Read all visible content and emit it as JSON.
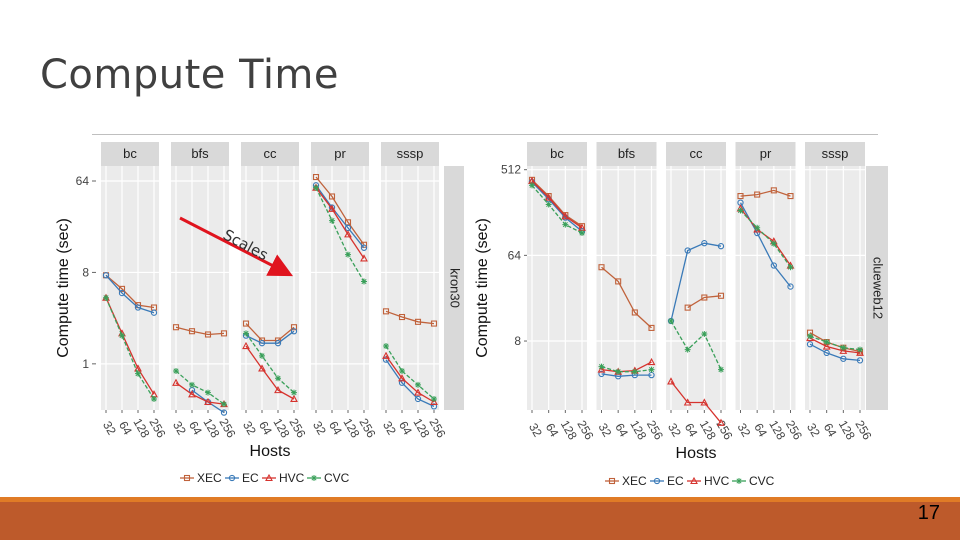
{
  "slide": {
    "title": "Compute Time",
    "annotation": "Scales",
    "page_number": "17"
  },
  "colors": {
    "XEC": "#c0623b",
    "EC": "#3a7ab8",
    "HVC": "#d6332e",
    "CVC": "#3aa05a"
  },
  "chart_data": [
    {
      "type": "line",
      "graph": "kron30",
      "ylabel": "Compute time (sec)",
      "xlabel": "Hosts",
      "y_scale": "log2",
      "yticks": [
        1,
        8,
        64
      ],
      "ytick_labels": [
        "1",
        "8",
        "64"
      ],
      "ylim": [
        0.35,
        90
      ],
      "x": [
        "32",
        "64",
        "128",
        "256"
      ],
      "legend": [
        "XEC",
        "EC",
        "HVC",
        "CVC"
      ],
      "legend_position": "bottom",
      "facets": [
        {
          "name": "bc",
          "series": [
            {
              "name": "XEC",
              "values": [
                7.5,
                5.5,
                3.8,
                3.6
              ]
            },
            {
              "name": "EC",
              "values": [
                7.5,
                5.0,
                3.6,
                3.2
              ]
            },
            {
              "name": "HVC",
              "values": [
                4.5,
                2.0,
                0.9,
                0.5
              ]
            },
            {
              "name": "CVC",
              "values": [
                4.5,
                1.9,
                0.8,
                0.45
              ]
            }
          ]
        },
        {
          "name": "bfs",
          "series": [
            {
              "name": "XEC",
              "values": [
                2.3,
                2.1,
                1.95,
                2.0
              ]
            },
            {
              "name": "EC",
              "values": [
                null,
                0.55,
                0.42,
                0.33
              ]
            },
            {
              "name": "HVC",
              "values": [
                0.65,
                0.5,
                0.42,
                0.4
              ]
            },
            {
              "name": "CVC",
              "values": [
                0.85,
                0.62,
                0.52,
                0.4
              ]
            }
          ]
        },
        {
          "name": "cc",
          "series": [
            {
              "name": "XEC",
              "values": [
                2.5,
                1.7,
                1.7,
                2.3
              ]
            },
            {
              "name": "EC",
              "values": [
                1.9,
                1.6,
                1.6,
                2.1
              ]
            },
            {
              "name": "HVC",
              "values": [
                1.5,
                0.9,
                0.55,
                0.45
              ]
            },
            {
              "name": "CVC",
              "values": [
                2.0,
                1.2,
                0.72,
                0.52
              ]
            }
          ]
        },
        {
          "name": "pr",
          "series": [
            {
              "name": "XEC",
              "values": [
                70,
                45,
                25,
                15
              ]
            },
            {
              "name": "EC",
              "values": [
                58,
                35,
                22,
                14
              ]
            },
            {
              "name": "HVC",
              "values": [
                55,
                34,
                19,
                11
              ]
            },
            {
              "name": "CVC",
              "values": [
                55,
                26,
                12,
                6.5
              ]
            }
          ]
        },
        {
          "name": "sssp",
          "series": [
            {
              "name": "XEC",
              "values": [
                3.3,
                2.9,
                2.6,
                2.5
              ]
            },
            {
              "name": "EC",
              "values": [
                1.1,
                0.65,
                0.45,
                0.38
              ]
            },
            {
              "name": "HVC",
              "values": [
                1.2,
                0.72,
                0.52,
                0.42
              ]
            },
            {
              "name": "CVC",
              "values": [
                1.5,
                0.85,
                0.62,
                0.45
              ]
            }
          ]
        }
      ]
    },
    {
      "type": "line",
      "graph": "clueweb12",
      "ylabel": "Compute time (sec)",
      "xlabel": "Hosts",
      "y_scale": "log2",
      "yticks": [
        8,
        64,
        512
      ],
      "ytick_labels": [
        "8",
        "64",
        "512"
      ],
      "ylim": [
        1.5,
        560
      ],
      "x": [
        "32",
        "64",
        "128",
        "256"
      ],
      "legend": [
        "XEC",
        "EC",
        "HVC",
        "CVC"
      ],
      "legend_position": "bottom",
      "facets": [
        {
          "name": "bc",
          "series": [
            {
              "name": "XEC",
              "values": [
                400,
                270,
                170,
                130
              ]
            },
            {
              "name": "EC",
              "values": [
                380,
                250,
                160,
                115
              ]
            },
            {
              "name": "HVC",
              "values": [
                390,
                260,
                165,
                125
              ]
            },
            {
              "name": "CVC",
              "values": [
                350,
                220,
                135,
                110
              ]
            }
          ]
        },
        {
          "name": "bfs",
          "series": [
            {
              "name": "XEC",
              "values": [
                48,
                34,
                16,
                11
              ]
            },
            {
              "name": "EC",
              "values": [
                3.6,
                3.4,
                3.5,
                3.5
              ]
            },
            {
              "name": "HVC",
              "values": [
                4.0,
                3.8,
                3.9,
                4.8
              ]
            },
            {
              "name": "CVC",
              "values": [
                4.3,
                3.8,
                3.8,
                4.0
              ]
            }
          ]
        },
        {
          "name": "cc",
          "series": [
            {
              "name": "XEC",
              "values": [
                null,
                18,
                23,
                24
              ]
            },
            {
              "name": "EC",
              "values": [
                13,
                72,
                86,
                80
              ]
            },
            {
              "name": "HVC",
              "values": [
                3.0,
                1.8,
                1.8,
                1.1
              ]
            },
            {
              "name": "CVC",
              "values": [
                13,
                6.5,
                9.5,
                4.0
              ]
            }
          ]
        },
        {
          "name": "pr",
          "series": [
            {
              "name": "XEC",
              "values": [
                270,
                280,
                310,
                270
              ]
            },
            {
              "name": "EC",
              "values": [
                230,
                110,
                50,
                30
              ]
            },
            {
              "name": "HVC",
              "values": [
                200,
                120,
                90,
                50
              ]
            },
            {
              "name": "CVC",
              "values": [
                190,
                125,
                85,
                48
              ]
            }
          ]
        },
        {
          "name": "sssp",
          "series": [
            {
              "name": "XEC",
              "values": [
                9.8,
                7.8,
                6.8,
                6.2
              ]
            },
            {
              "name": "EC",
              "values": [
                7.4,
                6.0,
                5.2,
                5.0
              ]
            },
            {
              "name": "HVC",
              "values": [
                8.6,
                7.0,
                6.3,
                6.0
              ]
            },
            {
              "name": "CVC",
              "values": [
                9.0,
                7.8,
                6.8,
                6.5
              ]
            }
          ]
        }
      ]
    }
  ]
}
